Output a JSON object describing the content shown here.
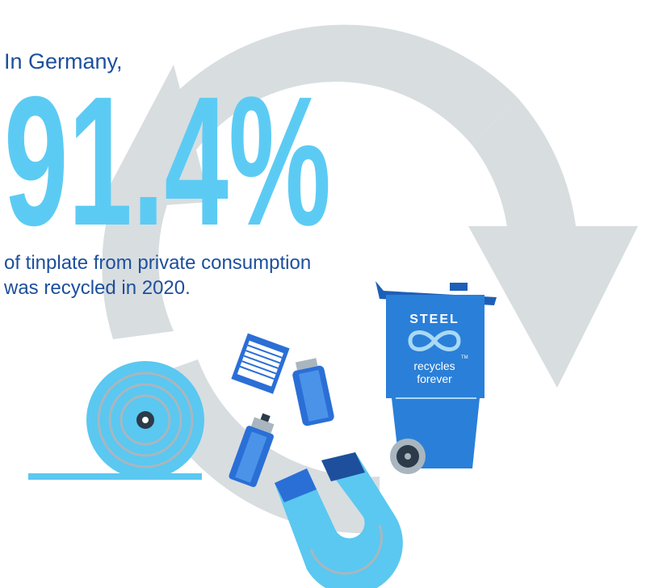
{
  "intro": "In Germany,",
  "headline": "91.4%",
  "description": {
    "line1": "of tinplate from private consumption",
    "line2": "was recycled in 2020."
  },
  "bin": {
    "label": "STEEL",
    "trademark": "TM",
    "slogan1": "recycles",
    "slogan2": "forever"
  }
}
